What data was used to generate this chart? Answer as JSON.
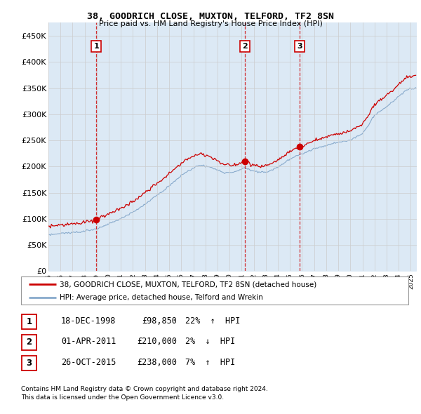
{
  "title": "38, GOODRICH CLOSE, MUXTON, TELFORD, TF2 8SN",
  "subtitle": "Price paid vs. HM Land Registry's House Price Index (HPI)",
  "ylim": [
    0,
    475000
  ],
  "yticks": [
    0,
    50000,
    100000,
    150000,
    200000,
    250000,
    300000,
    350000,
    400000,
    450000
  ],
  "ytick_labels": [
    "£0",
    "£50K",
    "£100K",
    "£150K",
    "£200K",
    "£250K",
    "£300K",
    "£350K",
    "£400K",
    "£450K"
  ],
  "sale_color": "#cc0000",
  "hpi_color": "#88aacc",
  "hpi_fill_color": "#dce9f5",
  "sale_label": "38, GOODRICH CLOSE, MUXTON, TELFORD, TF2 8SN (detached house)",
  "hpi_label": "HPI: Average price, detached house, Telford and Wrekin",
  "transactions": [
    {
      "num": 1,
      "date": "18-DEC-1998",
      "price": 98850,
      "pct": "22%",
      "dir": "↑"
    },
    {
      "num": 2,
      "date": "01-APR-2011",
      "price": 210000,
      "pct": "2%",
      "dir": "↓"
    },
    {
      "num": 3,
      "date": "26-OCT-2015",
      "price": 238000,
      "pct": "7%",
      "dir": "↑"
    }
  ],
  "footnote1": "Contains HM Land Registry data © Crown copyright and database right 2024.",
  "footnote2": "This data is licensed under the Open Government Licence v3.0.",
  "vline_color": "#cc0000",
  "background_color": "white",
  "grid_color": "#cccccc",
  "chart_bg": "#dce9f5"
}
